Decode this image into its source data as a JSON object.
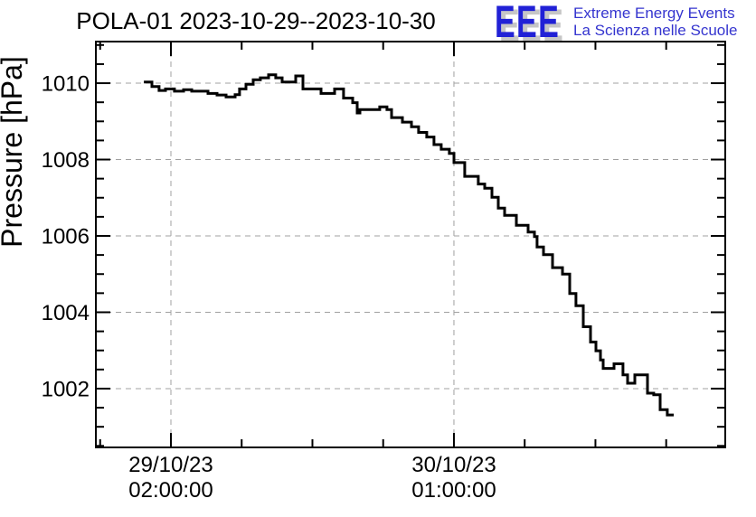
{
  "title": "POLA-01 2023-10-29--2023-10-30",
  "logo": {
    "acronym": "EEE",
    "line1": "Extreme Energy Events",
    "line2": "La Scienza nelle Scuole",
    "acronym_color": "#2121d6",
    "shadow_color": "#c6c6c6",
    "text_color": "#3535cf"
  },
  "chart_data": {
    "type": "line",
    "style": "step-post",
    "title": "POLA-01 2023-10-29--2023-10-30",
    "xlabel": "",
    "ylabel": "Pressure [hPa]",
    "x_unit": "hours since 2023-10-29 02:00:00",
    "xlim": [
      -6.1,
      45.05
    ],
    "ylim": [
      1000.46,
      1011.09
    ],
    "y_major_ticks": [
      1002,
      1004,
      1006,
      1008,
      1010
    ],
    "y_minor_step": 0.5,
    "x_major_ticks": [
      {
        "hours": 0,
        "label_line1": "29/10/23",
        "label_line2": "02:00:00"
      },
      {
        "hours": 23,
        "label_line1": "30/10/23",
        "label_line2": "01:00:00"
      }
    ],
    "x_minor_ticks_hours": [
      -5.75,
      5.75,
      11.5,
      17.25,
      28.75,
      34.5,
      40.25
    ],
    "grid": {
      "show": true,
      "color": "#a0a0a0",
      "dash": [
        6,
        5
      ]
    },
    "line_color": "#000000",
    "legend": null,
    "series": [
      {
        "name": "pressure_hPa",
        "end_hours": 40.86,
        "points": [
          [
            -2.2,
            1010.03
          ],
          [
            -1.54,
            1009.91
          ],
          [
            -0.96,
            1009.81
          ],
          [
            -0.44,
            1009.85
          ],
          [
            0.29,
            1009.79
          ],
          [
            1.03,
            1009.83
          ],
          [
            1.69,
            1009.79
          ],
          [
            3.01,
            1009.73
          ],
          [
            3.75,
            1009.69
          ],
          [
            4.48,
            1009.64
          ],
          [
            5.22,
            1009.7
          ],
          [
            5.58,
            1009.85
          ],
          [
            6.1,
            1009.97
          ],
          [
            6.69,
            1010.09
          ],
          [
            7.27,
            1010.14
          ],
          [
            7.94,
            1010.22
          ],
          [
            8.52,
            1010.14
          ],
          [
            9.04,
            1010.03
          ],
          [
            10.14,
            1010.19
          ],
          [
            10.73,
            1009.85
          ],
          [
            12.2,
            1009.73
          ],
          [
            13.3,
            1009.85
          ],
          [
            14.03,
            1009.61
          ],
          [
            14.77,
            1009.49
          ],
          [
            15.14,
            1009.22
          ],
          [
            15.36,
            1009.31
          ],
          [
            16.97,
            1009.38
          ],
          [
            17.56,
            1009.31
          ],
          [
            17.93,
            1009.1
          ],
          [
            18.81,
            1008.98
          ],
          [
            19.55,
            1008.86
          ],
          [
            20.13,
            1008.71
          ],
          [
            20.79,
            1008.59
          ],
          [
            21.38,
            1008.39
          ],
          [
            21.97,
            1008.27
          ],
          [
            22.63,
            1008.16
          ],
          [
            23.0,
            1007.92
          ],
          [
            23.88,
            1007.56
          ],
          [
            24.98,
            1007.36
          ],
          [
            25.5,
            1007.25
          ],
          [
            26.09,
            1007.01
          ],
          [
            26.6,
            1006.73
          ],
          [
            27.12,
            1006.54
          ],
          [
            28.07,
            1006.28
          ],
          [
            29.03,
            1006.1
          ],
          [
            29.54,
            1005.98
          ],
          [
            29.76,
            1005.71
          ],
          [
            30.28,
            1005.51
          ],
          [
            31.01,
            1005.17
          ],
          [
            31.82,
            1005.0
          ],
          [
            32.41,
            1004.49
          ],
          [
            32.92,
            1004.17
          ],
          [
            33.51,
            1003.62
          ],
          [
            34.1,
            1003.22
          ],
          [
            34.54,
            1002.99
          ],
          [
            34.91,
            1002.75
          ],
          [
            35.13,
            1002.53
          ],
          [
            36.01,
            1002.65
          ],
          [
            36.74,
            1002.36
          ],
          [
            37.11,
            1002.14
          ],
          [
            37.7,
            1002.36
          ],
          [
            38.73,
            1001.88
          ],
          [
            39.24,
            1001.84
          ],
          [
            39.76,
            1001.45
          ],
          [
            40.34,
            1001.31
          ]
        ]
      }
    ]
  }
}
